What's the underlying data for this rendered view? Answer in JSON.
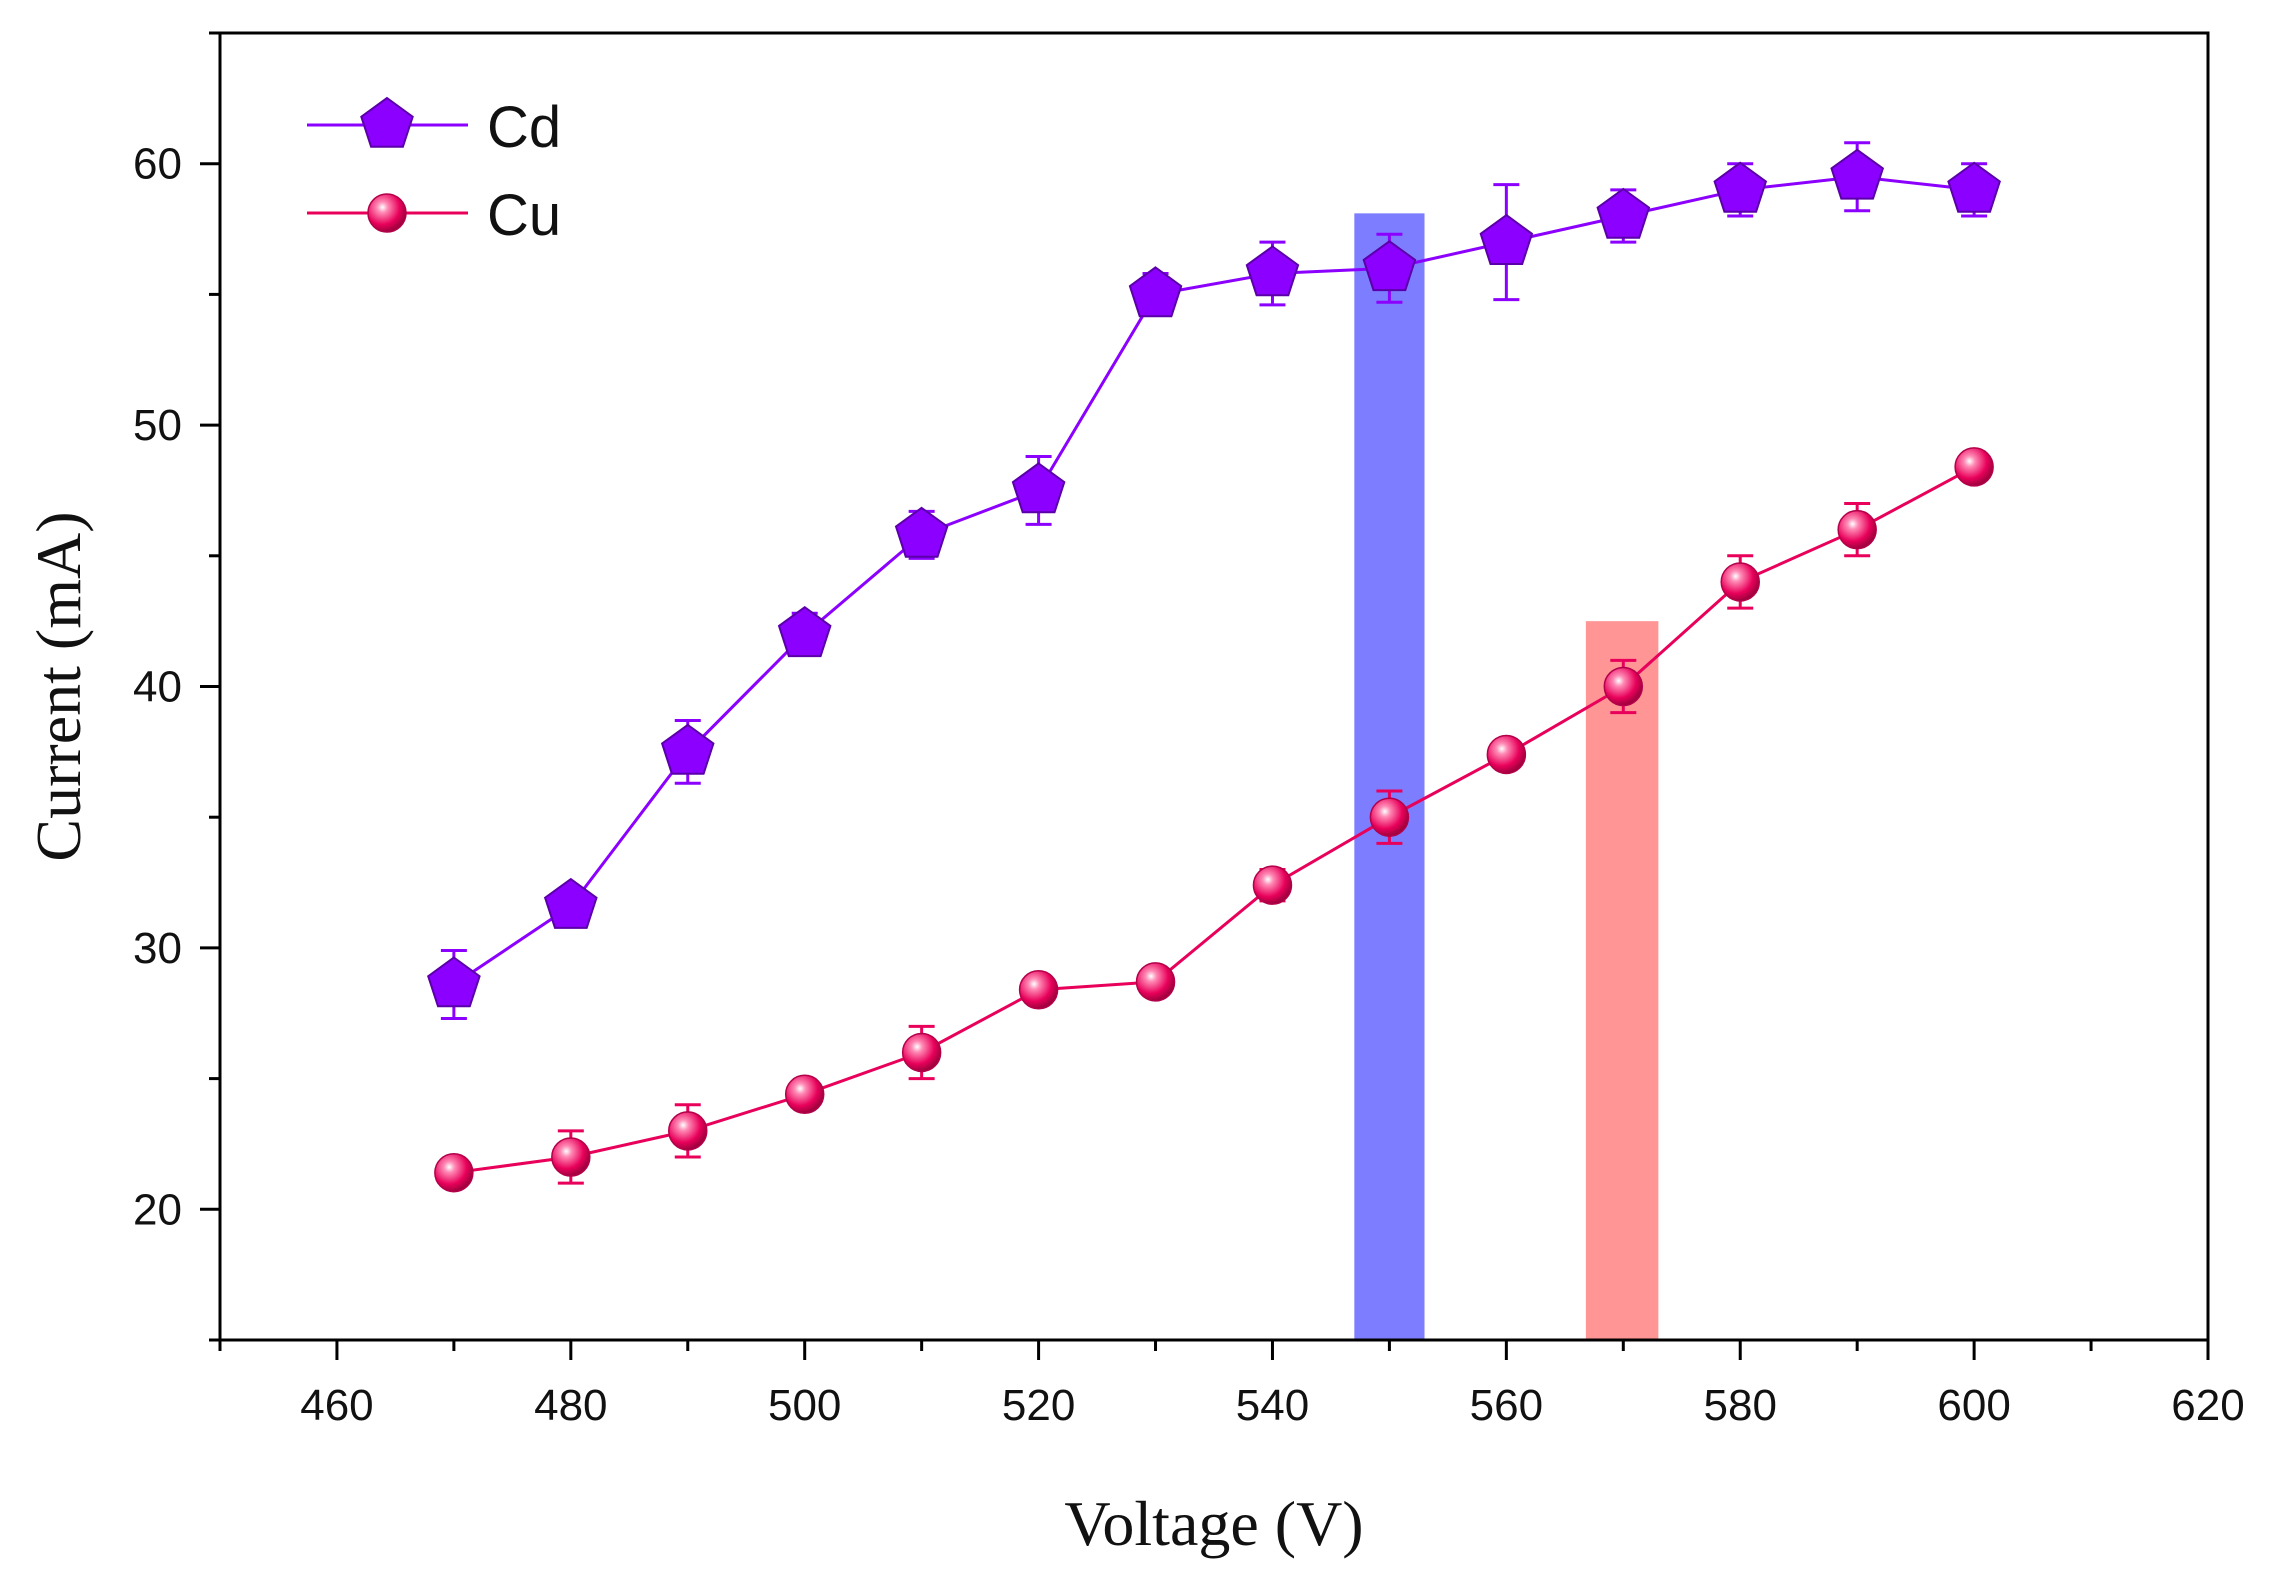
{
  "chart_data": {
    "type": "line",
    "title": "",
    "xlabel": "Voltage (V)",
    "ylabel": "Current (mA)",
    "xlim": [
      450,
      620
    ],
    "ylim": [
      15,
      65
    ],
    "xticks": [
      460,
      480,
      500,
      520,
      540,
      560,
      580,
      600,
      620
    ],
    "xtick_labels": [
      "460",
      "480",
      "500",
      "520",
      "540",
      "560",
      "580",
      "600",
      "620"
    ],
    "yticks": [
      20,
      30,
      40,
      50,
      60
    ],
    "ytick_labels": [
      "20",
      "30",
      "40",
      "50",
      "60"
    ],
    "grid": false,
    "legend_position": "top-left",
    "x": [
      470,
      480,
      490,
      500,
      510,
      520,
      530,
      540,
      550,
      560,
      570,
      580,
      590,
      600
    ],
    "series": [
      {
        "name": "Cd",
        "color": "#8B00FF",
        "marker": "pentagon",
        "values": [
          28.6,
          31.6,
          37.5,
          42.0,
          45.8,
          47.5,
          55.0,
          55.8,
          56.0,
          57.0,
          58.0,
          59.0,
          59.5,
          59.0
        ],
        "errors": [
          1.3,
          0.6,
          1.2,
          0.8,
          0.9,
          1.3,
          0.8,
          1.2,
          1.3,
          2.2,
          1.0,
          1.0,
          1.3,
          1.0
        ]
      },
      {
        "name": "Cu",
        "color": "#E8005A",
        "marker": "circle",
        "values": [
          21.4,
          22.0,
          23.0,
          24.4,
          26.0,
          28.4,
          28.7,
          32.4,
          35.0,
          37.4,
          40.0,
          44.0,
          46.0,
          48.4
        ],
        "errors": [
          0.4,
          1.0,
          1.0,
          0.5,
          1.0,
          0.5,
          0.5,
          0.6,
          1.0,
          0.5,
          1.0,
          1.0,
          1.0,
          0.5
        ]
      }
    ],
    "highlights": [
      {
        "name": "cd-highlight",
        "x": 550,
        "x_from": 547,
        "x_to": 553,
        "y_top": 58.1,
        "color": "#6666FF",
        "opacity": 0.85
      },
      {
        "name": "cu-highlight",
        "x": 570,
        "x_from": 566.8,
        "x_to": 573,
        "y_top": 42.5,
        "color": "#FF7A7A",
        "opacity": 0.8
      }
    ]
  }
}
